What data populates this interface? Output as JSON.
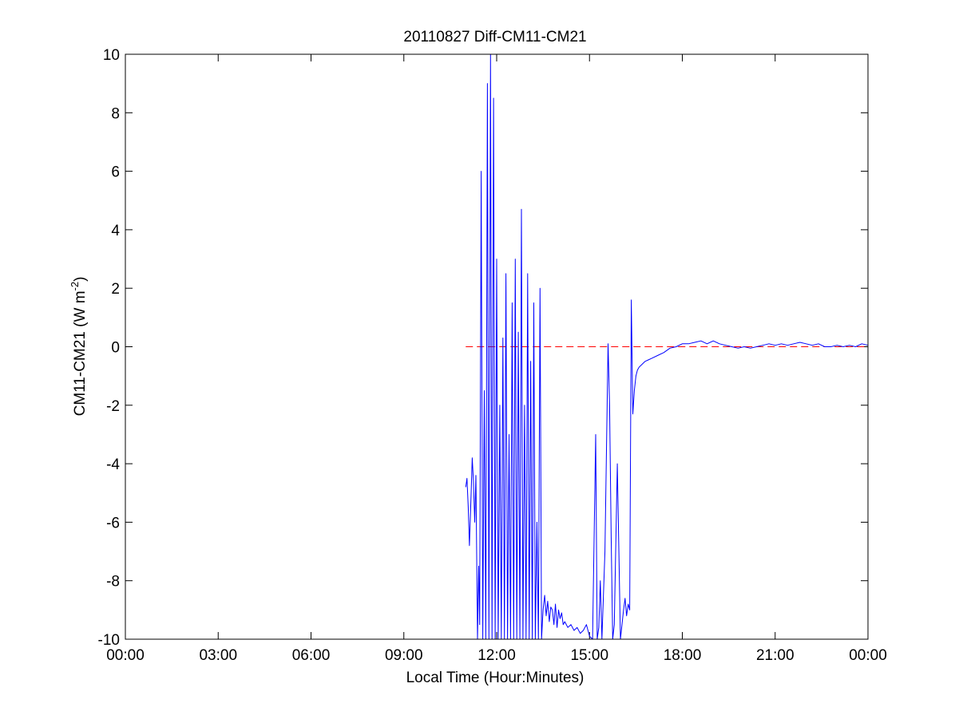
{
  "chart_data": {
    "type": "line",
    "title": "20110827 Diff-CM11-CM21",
    "xlabel": "Local Time (Hour:Minutes)",
    "ylabel_main": "CM11-CM21 (W m",
    "ylabel_sup": "-2",
    "ylabel_close": ")",
    "x_unit": "hours",
    "xlim": [
      0,
      24
    ],
    "ylim": [
      -10,
      10
    ],
    "x_ticks": [
      {
        "value": 0,
        "label": "00:00"
      },
      {
        "value": 3,
        "label": "03:00"
      },
      {
        "value": 6,
        "label": "06:00"
      },
      {
        "value": 9,
        "label": "09:00"
      },
      {
        "value": 12,
        "label": "12:00"
      },
      {
        "value": 15,
        "label": "15:00"
      },
      {
        "value": 18,
        "label": "18:00"
      },
      {
        "value": 21,
        "label": "21:00"
      },
      {
        "value": 24,
        "label": "00:00"
      }
    ],
    "y_ticks": [
      {
        "value": 10,
        "label": "10"
      },
      {
        "value": 8,
        "label": "8"
      },
      {
        "value": 6,
        "label": "6"
      },
      {
        "value": 4,
        "label": "4"
      },
      {
        "value": 2,
        "label": "2"
      },
      {
        "value": 0,
        "label": "0"
      },
      {
        "value": -2,
        "label": "-2"
      },
      {
        "value": -4,
        "label": "-4"
      },
      {
        "value": -6,
        "label": "-6"
      },
      {
        "value": -8,
        "label": "-8"
      },
      {
        "value": -10,
        "label": "-10"
      }
    ],
    "reference_line": {
      "y": 0,
      "x_start": 11.0,
      "x_end": 24.0,
      "style": "dashed",
      "color": "#ff0000"
    },
    "series": [
      {
        "color": "#0000ff",
        "x": [
          11.0,
          11.04,
          11.08,
          11.12,
          11.17,
          11.21,
          11.25,
          11.29,
          11.33,
          11.38,
          11.42,
          11.45,
          11.5,
          11.55,
          11.6,
          11.65,
          11.7,
          11.75,
          11.8,
          11.85,
          11.9,
          11.95,
          12.0,
          12.05,
          12.1,
          12.15,
          12.2,
          12.25,
          12.3,
          12.35,
          12.4,
          12.45,
          12.5,
          12.55,
          12.6,
          12.65,
          12.7,
          12.75,
          12.8,
          12.85,
          12.9,
          12.95,
          13.0,
          13.05,
          13.1,
          13.15,
          13.2,
          13.25,
          13.3,
          13.35,
          13.4,
          13.45,
          13.5,
          13.55,
          13.6,
          13.65,
          13.7,
          13.75,
          13.8,
          13.85,
          13.9,
          13.95,
          14.0,
          14.05,
          14.1,
          14.15,
          14.2,
          14.3,
          14.4,
          14.5,
          14.6,
          14.7,
          14.8,
          14.9,
          15.0,
          15.1,
          15.2,
          15.25,
          15.3,
          15.35,
          15.4,
          15.5,
          15.6,
          15.65,
          15.7,
          15.75,
          15.8,
          15.9,
          16.0,
          16.1,
          16.15,
          16.2,
          16.25,
          16.3,
          16.35,
          16.4,
          16.45,
          16.5,
          16.55,
          16.6,
          16.7,
          16.8,
          16.9,
          17.0,
          17.2,
          17.4,
          17.6,
          17.8,
          18.0,
          18.2,
          18.4,
          18.6,
          18.8,
          19.0,
          19.2,
          19.4,
          19.6,
          19.8,
          20.0,
          20.2,
          20.4,
          20.6,
          20.8,
          21.0,
          21.2,
          21.4,
          21.6,
          21.8,
          22.0,
          22.2,
          22.4,
          22.6,
          22.8,
          23.0,
          23.2,
          23.4,
          23.6,
          23.8,
          24.0
        ],
        "y": [
          -4.8,
          -4.5,
          -5.5,
          -6.8,
          -5.2,
          -3.8,
          -4.6,
          -6.0,
          -4.4,
          -10,
          -7.5,
          -9.5,
          6.0,
          -10,
          -1.5,
          -10,
          9.0,
          -10,
          10,
          -10,
          8.5,
          -10,
          3.0,
          -10,
          -2.0,
          -10,
          0.3,
          -10,
          2.5,
          -10,
          -3.0,
          -10,
          1.5,
          -10,
          3.0,
          -10,
          0.5,
          -10,
          4.7,
          -10,
          -2.0,
          -10,
          2.5,
          -10,
          -0.5,
          -10,
          1.5,
          -10,
          -6.0,
          -10,
          2.0,
          -10,
          -9.0,
          -8.5,
          -9.2,
          -8.7,
          -9.4,
          -8.9,
          -9.0,
          -9.5,
          -8.8,
          -9.6,
          -9.0,
          -9.3,
          -9.1,
          -9.5,
          -9.4,
          -9.6,
          -9.5,
          -9.7,
          -9.6,
          -9.8,
          -9.7,
          -9.5,
          -9.9,
          -10,
          -3.0,
          -10,
          -9.6,
          -8.0,
          -10,
          -7.0,
          0.1,
          -2.0,
          -6.5,
          -10,
          -9.5,
          -4.0,
          -10,
          -9.0,
          -8.6,
          -9.2,
          -8.8,
          -9.0,
          1.6,
          -2.3,
          -1.5,
          -1.0,
          -0.8,
          -0.7,
          -0.6,
          -0.5,
          -0.45,
          -0.4,
          -0.3,
          -0.2,
          -0.05,
          0.0,
          0.1,
          0.1,
          0.15,
          0.2,
          0.1,
          0.2,
          0.1,
          0.05,
          0.0,
          -0.05,
          0.0,
          -0.05,
          0.0,
          0.05,
          0.1,
          0.05,
          0.1,
          0.05,
          0.1,
          0.15,
          0.1,
          0.05,
          0.1,
          0.0,
          0.0,
          0.05,
          0.0,
          0.05,
          0.0,
          0.1,
          0.05
        ]
      }
    ],
    "grid": false
  }
}
